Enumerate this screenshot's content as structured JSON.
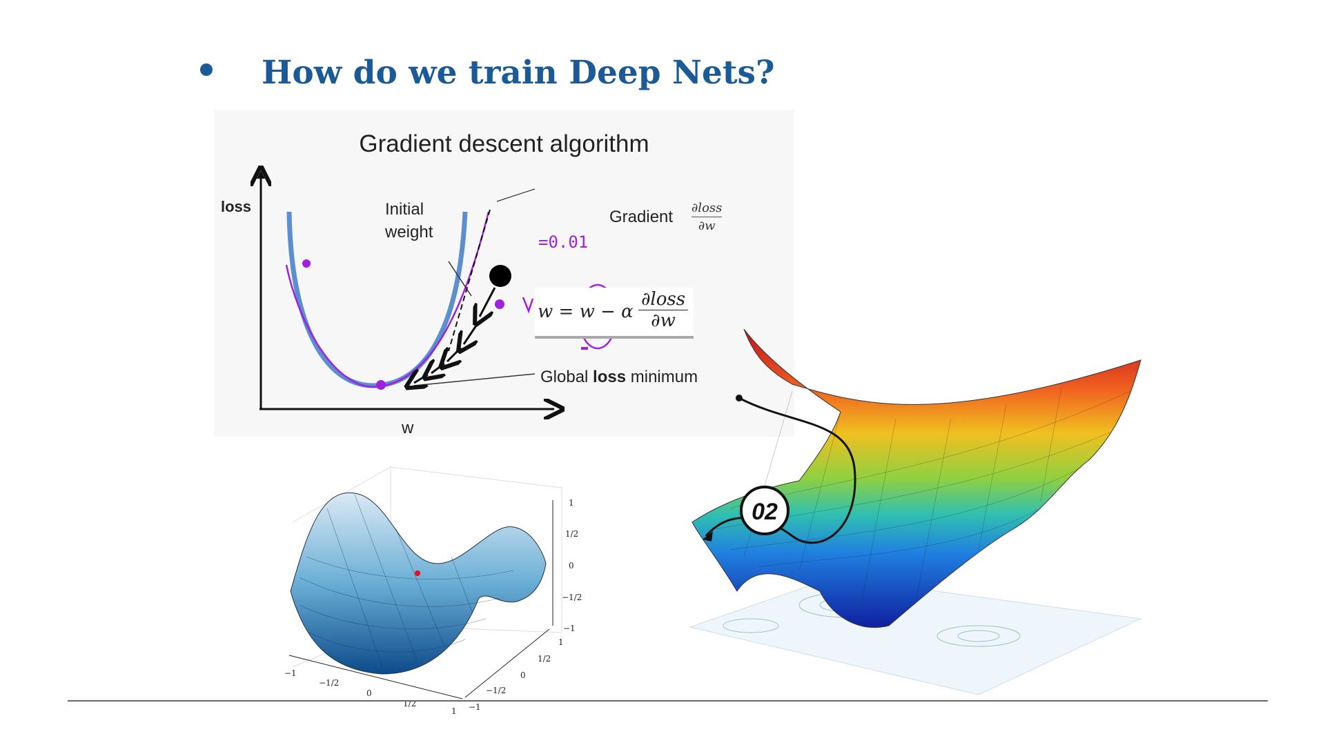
{
  "slide": {
    "bullet_title": "How do we train Deep Nets?",
    "accent_color": "#1a5a96"
  },
  "gradient_figure": {
    "title": "Gradient descent algorithm",
    "y_axis_label": "loss",
    "x_axis_label": "w",
    "initial_weight_label_1": "Initial",
    "initial_weight_label_2": "weight",
    "gradient_label": "Gradient",
    "gradient_frac_num": "∂loss",
    "gradient_frac_den": "∂w",
    "global_min_prefix": "Global ",
    "global_min_bold": "loss",
    "global_min_suffix": " minimum",
    "formula_lhs": "w = w − α",
    "formula_num": "∂loss",
    "formula_den": "∂w",
    "handwritten_note": "=0.01",
    "curve_color": "#5b8fd0",
    "annotation_color": "#a020e0"
  },
  "saddle_plot": {
    "z_ticks": [
      "1",
      "1/2",
      "0",
      "−1/2",
      "−1"
    ],
    "x_ticks": [
      "−1",
      "−1/2",
      "0",
      "1/2",
      "1"
    ],
    "y_ticks": [
      "1",
      "1/2",
      "0",
      "−1/2",
      "−1"
    ],
    "surface_color": "#3c86c0",
    "point_color": "#e0101a"
  },
  "loss_surface": {
    "badge": "02"
  }
}
